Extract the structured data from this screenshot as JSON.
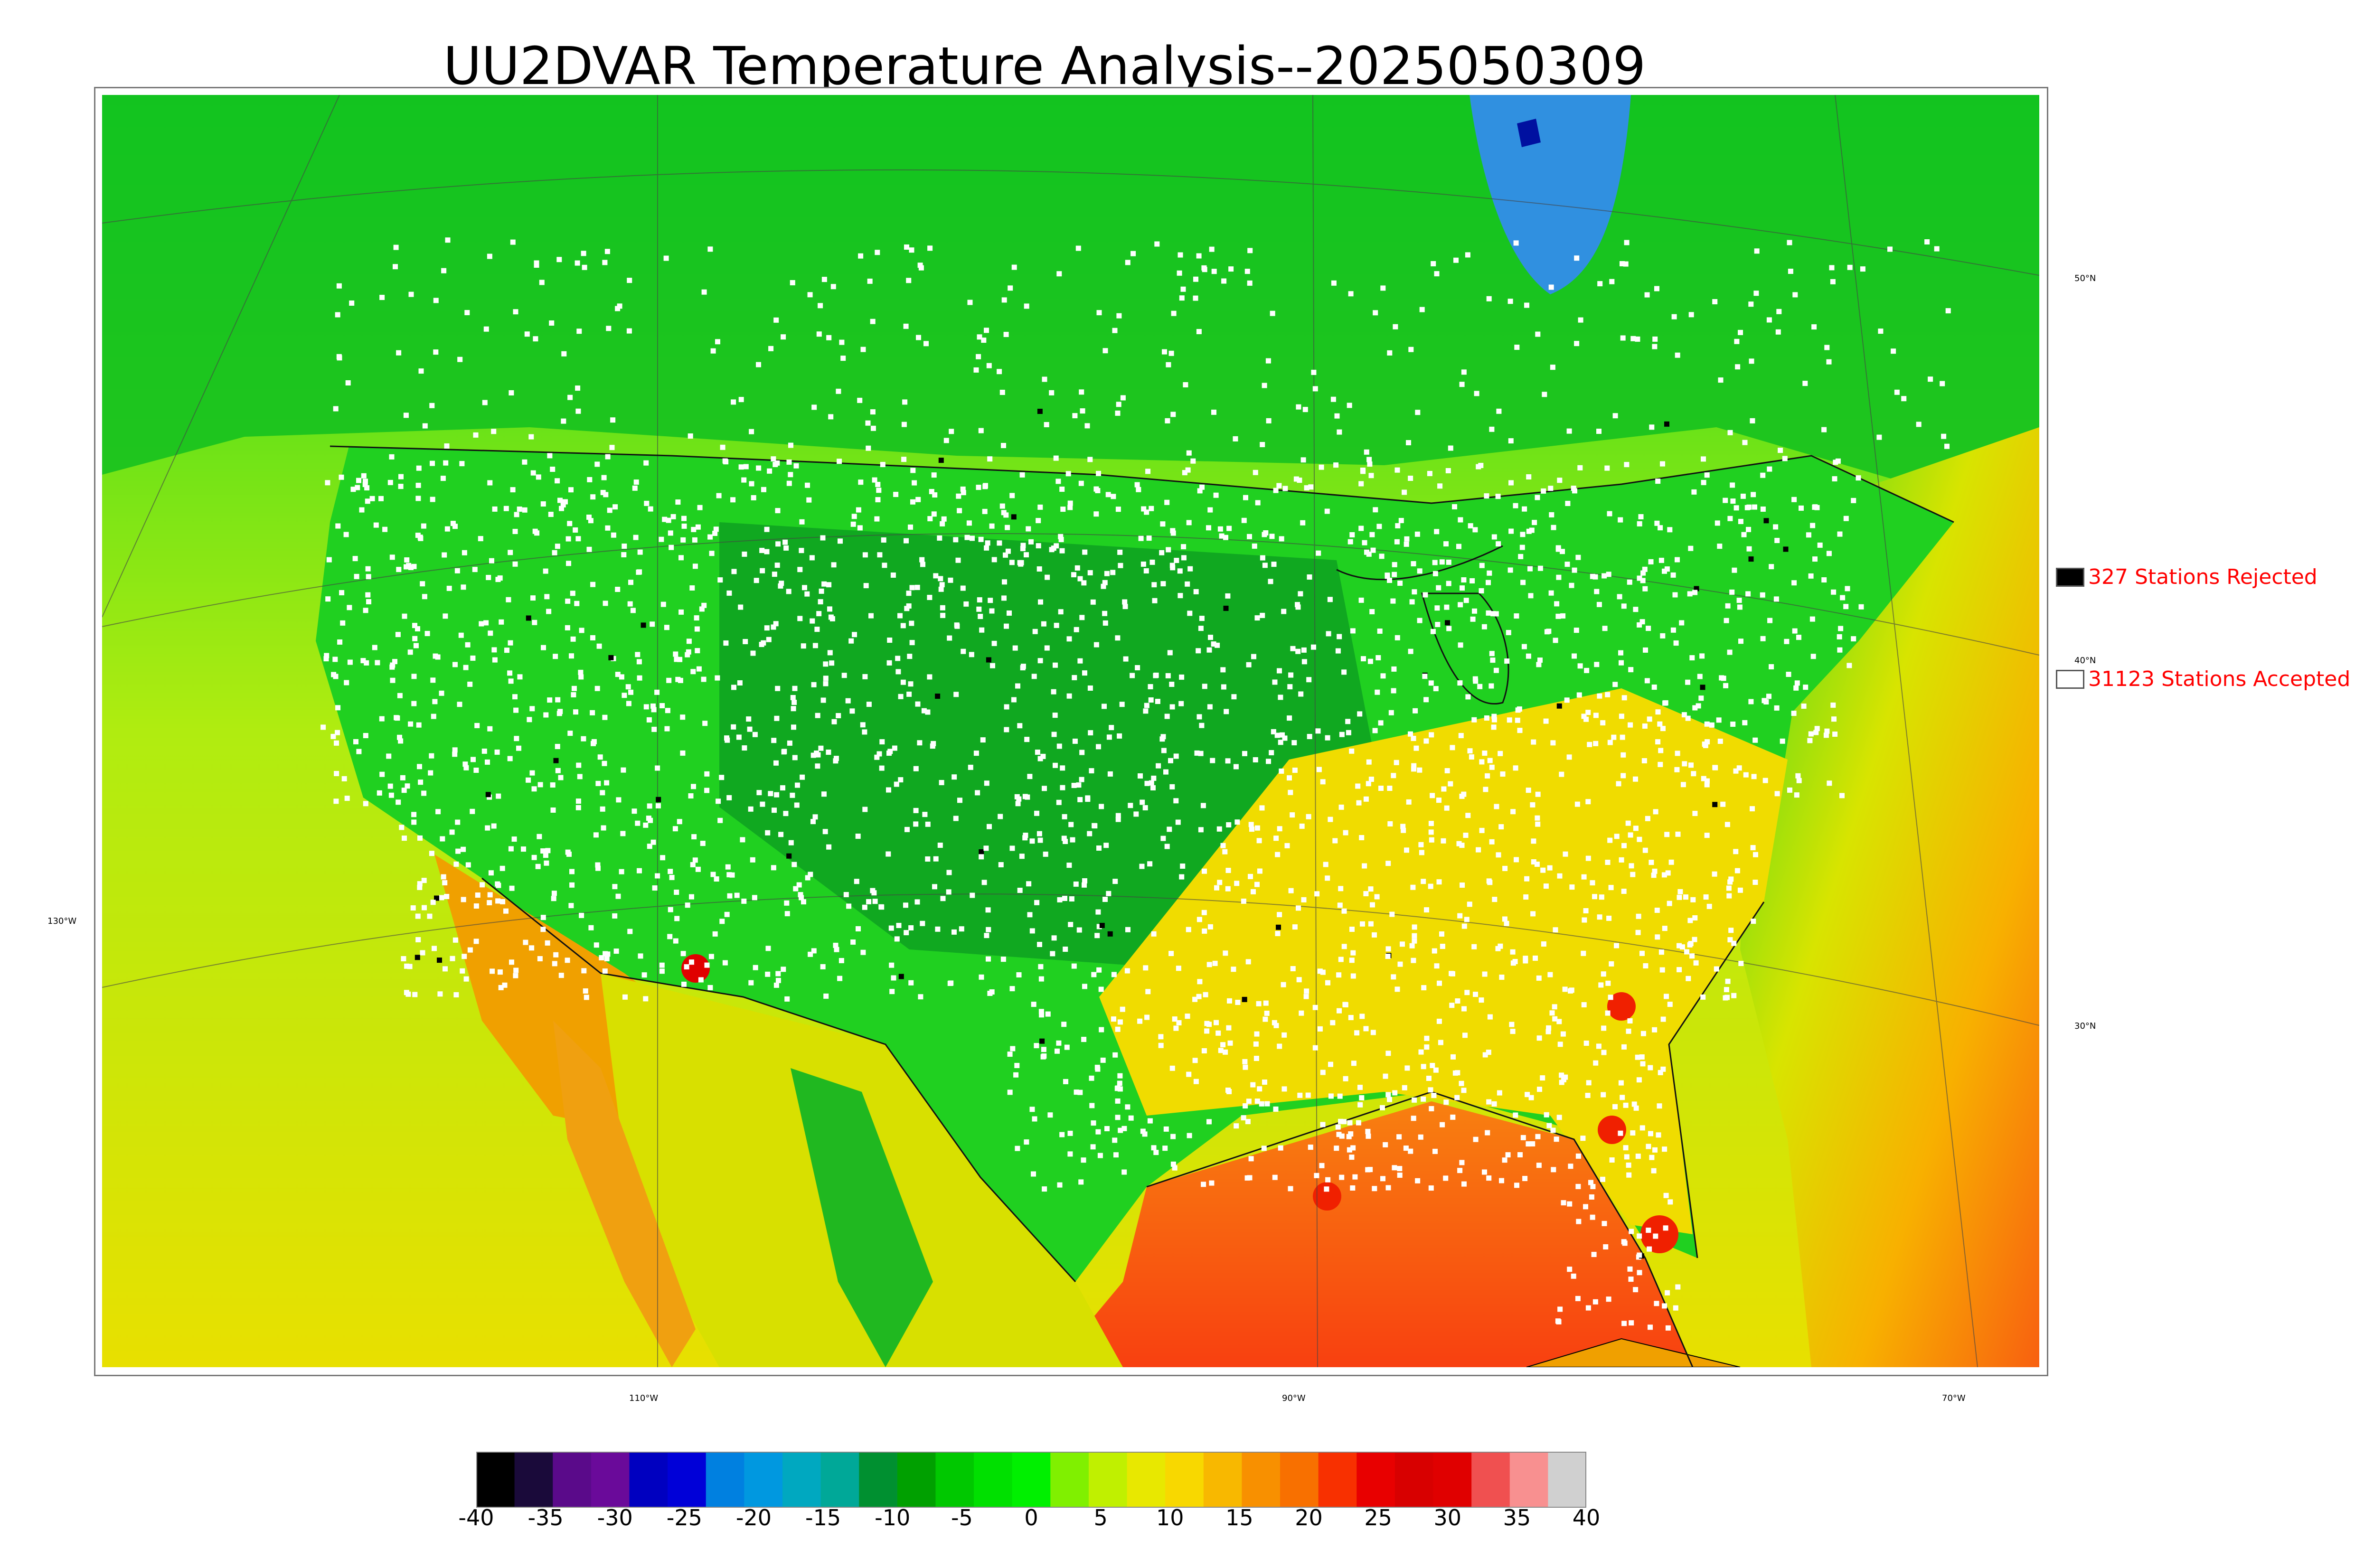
{
  "title": "UU2DVAR Temperature Analysis--2025050309",
  "longitude_labels": [
    "110°W",
    "90°W",
    "70°W"
  ],
  "latitude_labels": [
    "130°W",
    "50°N",
    "40°N",
    "30°N"
  ],
  "legend": {
    "rejected": {
      "label": "327 Stations Rejected",
      "count": 327,
      "color": "#000000"
    },
    "accepted": {
      "label": "31123 Stations Accepted",
      "count": 31123,
      "color": "#ffffff"
    }
  },
  "colorbar": {
    "min": -40,
    "max": 40,
    "tick_labels": [
      "-40",
      "-35",
      "-30",
      "-25",
      "-20",
      "-15",
      "-10",
      "-5",
      "0",
      "5",
      "10",
      "15",
      "20",
      "25",
      "30",
      "35",
      "40"
    ],
    "colors": [
      "#000000",
      "#1a0a3a",
      "#5a0a8a",
      "#6a0a9a",
      "#0000c0",
      "#0000d8",
      "#0080e0",
      "#0098e0",
      "#00a8c0",
      "#00a898",
      "#009030",
      "#00a000",
      "#00c800",
      "#00e000",
      "#00f000",
      "#80f000",
      "#c0f000",
      "#e8e800",
      "#f8d800",
      "#f8b800",
      "#f89000",
      "#f87000",
      "#f83000",
      "#e80000",
      "#d80000",
      "#e00000",
      "#f05050",
      "#f89090",
      "#d0d0d0"
    ]
  }
}
